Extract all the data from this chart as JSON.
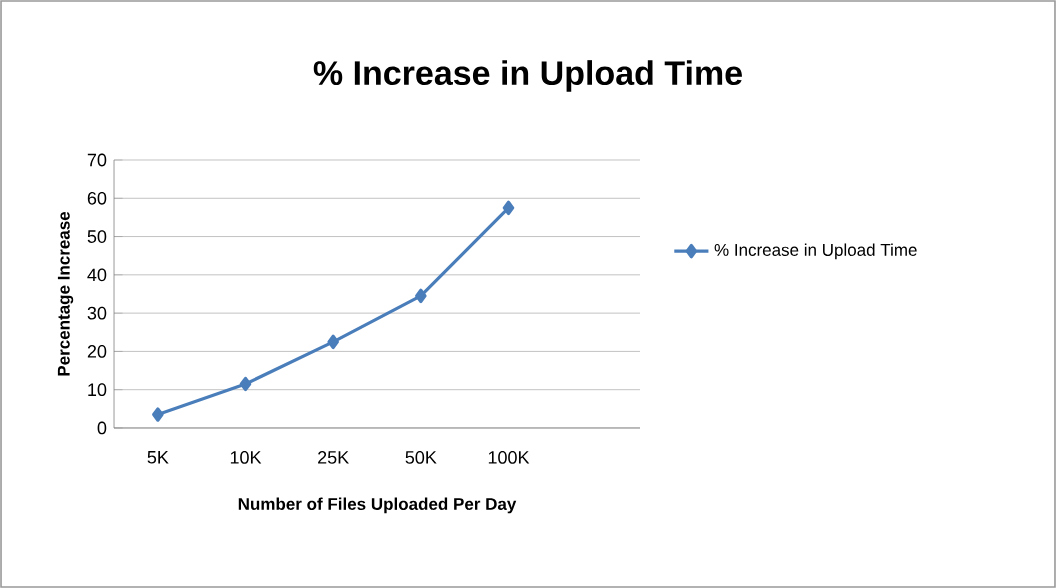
{
  "chart_data": {
    "type": "line",
    "title": "% Increase in Upload Time",
    "xlabel": "Number of Files Uploaded Per Day",
    "ylabel": "Percentage Increase",
    "categories": [
      "5K",
      "10K",
      "25K",
      "50K",
      "100K",
      null
    ],
    "series": [
      {
        "name": "% Increase in Upload Time",
        "color": "#4a7ebb",
        "values": [
          3.5,
          11.5,
          22.5,
          34.5,
          57.5,
          null
        ]
      }
    ],
    "ylim": [
      0,
      70
    ],
    "yticks": [
      0,
      10,
      20,
      30,
      40,
      50,
      60,
      70
    ],
    "grid": "y",
    "legend": "right",
    "marker": "diamond",
    "line_style": "solid"
  }
}
